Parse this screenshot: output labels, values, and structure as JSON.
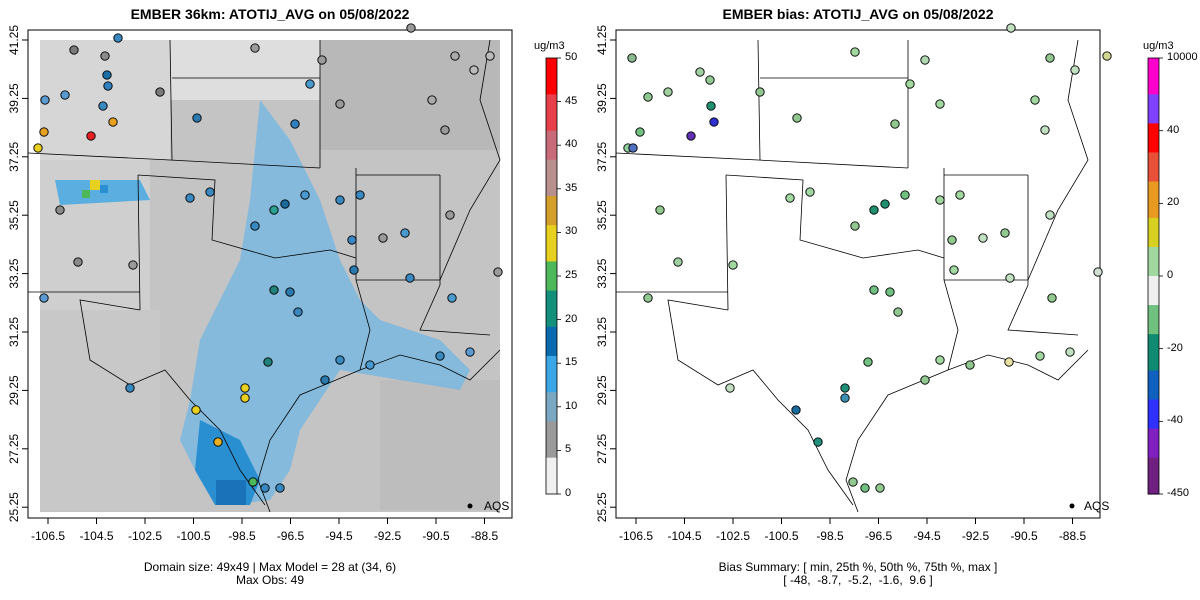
{
  "left_panel": {
    "title": "EMBER 36km: ATOTIJ_AVG on 05/08/2022",
    "caption_line1": "Domain size: 49x49 | Max Model = 28 at (34, 6)",
    "caption_line2": "Max Obs: 49",
    "legend_unit": "ug/m3",
    "colorbar_labels": [
      "50",
      "45",
      "40",
      "35",
      "30",
      "25",
      "20",
      "15",
      "10",
      "5",
      "0"
    ],
    "aqs_label": "AQS"
  },
  "right_panel": {
    "title": "EMBER bias: ATOTIJ_AVG on 05/08/2022",
    "caption_line1": "Bias Summary: [ min, 25th %, 50th %, 75th %, max ]",
    "caption_line2": "[ -48,  -8.7,  -5.2,  -1.6,  9.6 ]",
    "legend_unit": "ug/m3",
    "colorbar_labels": [
      "10000",
      "40",
      "20",
      "0",
      "-20",
      "-40",
      "-450"
    ],
    "aqs_label": "AQS"
  },
  "axes": {
    "x_ticks": [
      "-106.5",
      "-104.5",
      "-102.5",
      "-100.5",
      "-98.5",
      "-96.5",
      "-94.5",
      "-92.5",
      "-90.5",
      "-88.5"
    ],
    "y_ticks": [
      "41.25",
      "39.25",
      "37.25",
      "35.25",
      "33.25",
      "31.25",
      "29.25",
      "27.25",
      "25.25"
    ]
  },
  "colors": {
    "bg_gray": "#c8c8c8",
    "plume_blue": "#5aaee0",
    "colorbar_left": [
      "#ff0000",
      "#e8404a",
      "#c86a78",
      "#b8908e",
      "#d4a02a",
      "#e8d020",
      "#4cb85a",
      "#12907c",
      "#0a6ab0",
      "#3aa6e6",
      "#7aa8c2",
      "#9a9a9a",
      "#f0f0f0"
    ],
    "colorbar_right": [
      "#ff00cc",
      "#8040ff",
      "#ff0000",
      "#e8503a",
      "#e89a20",
      "#d8d020",
      "#a0d8a0",
      "#f0f0f0",
      "#70c080",
      "#108a70",
      "#1060c0",
      "#3030ff",
      "#8020c0",
      "#702080"
    ]
  }
}
